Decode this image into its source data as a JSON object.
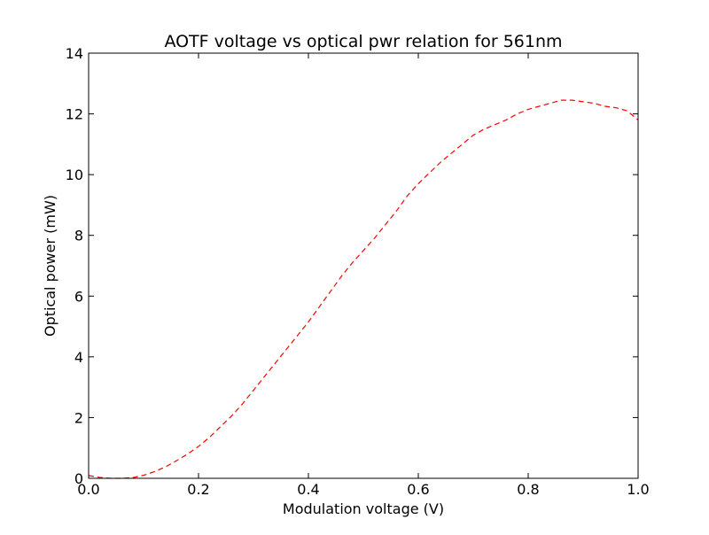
{
  "chart_data": {
    "type": "line",
    "title": "AOTF voltage vs optical pwr relation for 561nm",
    "xlabel": "Modulation voltage (V)",
    "ylabel": "Optical power (mW)",
    "xlim": [
      0.0,
      1.0
    ],
    "ylim": [
      0,
      14
    ],
    "x_ticks": [
      "0.0",
      "0.2",
      "0.4",
      "0.6",
      "0.8",
      "1.0"
    ],
    "y_ticks": [
      "0",
      "2",
      "4",
      "6",
      "8",
      "10",
      "12",
      "14"
    ],
    "grid": false,
    "legend": "none",
    "series": [
      {
        "color": "#ff0000",
        "line_style": "dashed",
        "x": [
          0.0,
          0.02,
          0.04,
          0.06,
          0.08,
          0.1,
          0.12,
          0.14,
          0.16,
          0.18,
          0.2,
          0.22,
          0.24,
          0.26,
          0.28,
          0.3,
          0.32,
          0.34,
          0.36,
          0.38,
          0.4,
          0.42,
          0.44,
          0.46,
          0.48,
          0.5,
          0.52,
          0.54,
          0.56,
          0.58,
          0.6,
          0.62,
          0.64,
          0.66,
          0.68,
          0.7,
          0.72,
          0.74,
          0.76,
          0.78,
          0.8,
          0.82,
          0.84,
          0.86,
          0.88,
          0.9,
          0.92,
          0.94,
          0.96,
          0.98,
          1.0
        ],
        "y": [
          0.09,
          0.03,
          0.0,
          0.0,
          0.02,
          0.1,
          0.22,
          0.38,
          0.58,
          0.8,
          1.05,
          1.35,
          1.7,
          2.05,
          2.45,
          2.9,
          3.35,
          3.8,
          4.25,
          4.7,
          5.15,
          5.65,
          6.15,
          6.65,
          7.1,
          7.5,
          7.9,
          8.35,
          8.8,
          9.3,
          9.7,
          10.05,
          10.4,
          10.7,
          11.0,
          11.3,
          11.5,
          11.65,
          11.8,
          12.0,
          12.15,
          12.25,
          12.35,
          12.45,
          12.45,
          12.4,
          12.35,
          12.25,
          12.2,
          12.1,
          11.8
        ]
      }
    ]
  }
}
